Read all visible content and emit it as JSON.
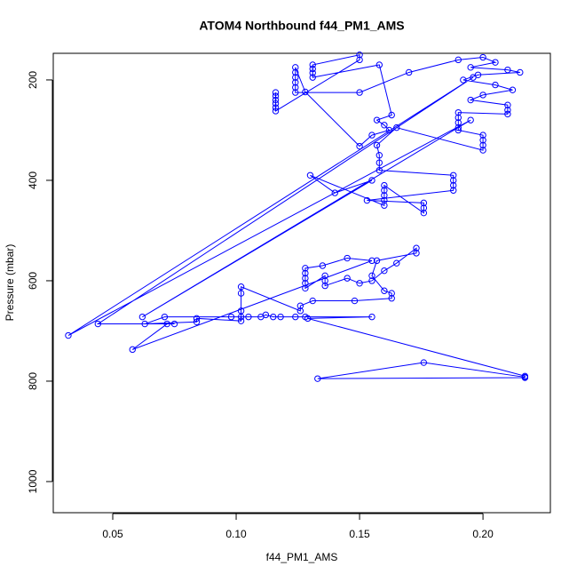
{
  "chart_data": {
    "type": "line",
    "markers": true,
    "title": "ATOM4 Northbound f44_PM1_AMS",
    "x_label": "f44_PM1_AMS",
    "y_label": "Pressure (mbar)",
    "color": "#0000ff",
    "xlim": [
      0.0259,
      0.2273
    ],
    "ylim": [
      1062,
      147
    ],
    "xticks": [
      0.05,
      {
        "value": 0.1,
        "label": "0.10"
      },
      0.15,
      {
        "value": 0.2,
        "label": "0.20"
      }
    ],
    "yticks": [
      200,
      400,
      600,
      800,
      1000
    ],
    "x": [
      0.116,
      0.116,
      0.116,
      0.116,
      0.116,
      0.116,
      0.15,
      0.15,
      0.131,
      0.131,
      0.131,
      0.131,
      0.158,
      0.163,
      0.157,
      0.16,
      0.162,
      0.155,
      0.15,
      0.128,
      0.124,
      0.124,
      0.124,
      0.124,
      0.124,
      0.124,
      0.15,
      0.17,
      0.19,
      0.2,
      0.205,
      0.195,
      0.21,
      0.215,
      0.198,
      0.192,
      0.205,
      0.212,
      0.2,
      0.195,
      0.21,
      0.21,
      0.21,
      0.19,
      0.19,
      0.19,
      0.19,
      0.19,
      0.2,
      0.2,
      0.2,
      0.2,
      0.165,
      0.157,
      0.158,
      0.158,
      0.158,
      0.188,
      0.188,
      0.188,
      0.188,
      0.153,
      0.176,
      0.176,
      0.176,
      0.16,
      0.16,
      0.16,
      0.16,
      0.16,
      0.13,
      0.14,
      0.155,
      0.062,
      0.195,
      0.032,
      0.196,
      0.044,
      0.075,
      0.072,
      0.058,
      0.155,
      0.145,
      0.135,
      0.128,
      0.128,
      0.128,
      0.128,
      0.128,
      0.136,
      0.136,
      0.136,
      0.145,
      0.15,
      0.155,
      0.16,
      0.165,
      0.173,
      0.173,
      0.157,
      0.155,
      0.16,
      0.163,
      0.163,
      0.148,
      0.131,
      0.126,
      0.126,
      0.102,
      0.102,
      0.102,
      0.102,
      0.102,
      0.084,
      0.084,
      0.063,
      0.071,
      0.098,
      0.105,
      0.11,
      0.112,
      0.115,
      0.118,
      0.124,
      0.128,
      0.155,
      0.129,
      0.217,
      0.217,
      0.133,
      0.176,
      0.217
    ],
    "values": [
      225,
      232,
      240,
      247,
      255,
      262,
      160,
      150,
      170,
      178,
      186,
      195,
      170,
      270,
      280,
      290,
      300,
      310,
      332,
      224,
      175,
      185,
      195,
      205,
      215,
      225,
      225,
      185,
      160,
      155,
      165,
      175,
      180,
      185,
      190,
      200,
      210,
      220,
      230,
      240,
      250,
      260,
      268,
      265,
      275,
      285,
      295,
      300,
      310,
      320,
      330,
      340,
      295,
      330,
      350,
      365,
      380,
      390,
      400,
      410,
      420,
      440,
      445,
      455,
      465,
      410,
      420,
      430,
      440,
      450,
      390,
      425,
      400,
      672,
      280,
      709,
      195,
      686,
      686,
      686,
      737,
      560,
      555,
      570,
      575,
      585,
      595,
      605,
      615,
      590,
      600,
      610,
      595,
      605,
      600,
      580,
      565,
      535,
      545,
      560,
      590,
      620,
      625,
      635,
      640,
      640,
      650,
      660,
      612,
      625,
      660,
      672,
      680,
      675,
      682,
      686,
      672,
      672,
      672,
      672,
      668,
      672,
      672,
      672,
      672,
      672,
      675,
      790,
      793,
      795,
      763,
      792
    ]
  }
}
